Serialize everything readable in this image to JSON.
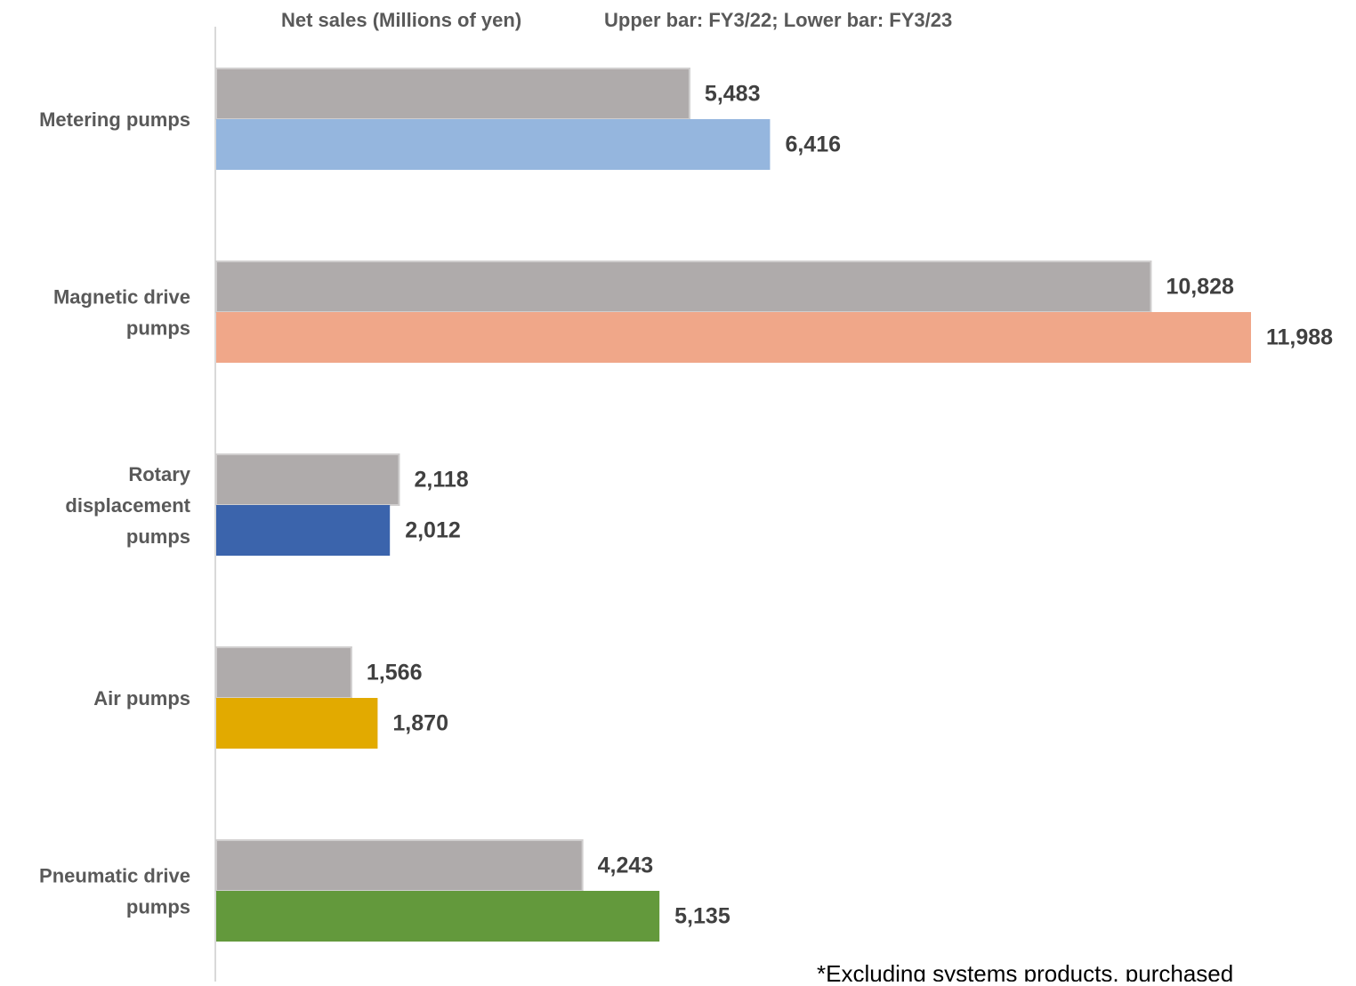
{
  "header": {
    "unit_label": "Net sales (Millions of yen)",
    "bar_key": "Upper bar: FY3/22; Lower bar: FY3/23"
  },
  "footnote": "*Excluding systems products, purchased",
  "chart_data": {
    "type": "bar",
    "orientation": "horizontal",
    "title": "",
    "xlabel": "",
    "ylabel": "",
    "unit": "Millions of yen",
    "categories": [
      [
        "Metering pumps"
      ],
      [
        "Magnetic drive",
        "pumps"
      ],
      [
        "Rotary",
        "displacement",
        "pumps"
      ],
      [
        "Air pumps"
      ],
      [
        "Pneumatic drive",
        "pumps"
      ]
    ],
    "series": [
      {
        "name": "FY3/22",
        "values": [
          5483,
          10828,
          2118,
          1566,
          4243
        ],
        "labels": [
          "5,483",
          "10,828",
          "2,118",
          "1,566",
          "4,243"
        ],
        "colors": [
          "#AFABAB",
          "#AFABAB",
          "#AFABAB",
          "#AFABAB",
          "#AFABAB"
        ]
      },
      {
        "name": "FY3/23",
        "values": [
          6416,
          11988,
          2012,
          1870,
          5135
        ],
        "labels": [
          "6,416",
          "11,988",
          "2,012",
          "1,870",
          "5,135"
        ],
        "colors": [
          "#95B6DE",
          "#F0A789",
          "#3B64AC",
          "#E2AA00",
          "#63993C"
        ]
      }
    ],
    "xlim": [
      0,
      12000
    ],
    "grid": false,
    "legend": "none",
    "axis_color": "#D9D9D9"
  }
}
